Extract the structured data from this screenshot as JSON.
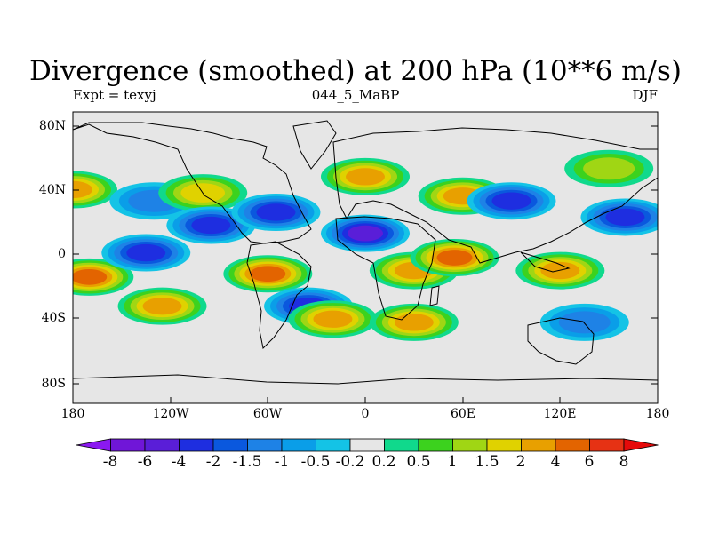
{
  "title": "Divergence (smoothed) at 200 hPa (10**6 m/s)",
  "subtitle_left": "Expt = texyj",
  "subtitle_center": "044_5_MaBP",
  "subtitle_right": "DJF",
  "lat_ticks": [
    "80N",
    "40N",
    "0",
    "40S",
    "80S"
  ],
  "lon_ticks": [
    "180",
    "120W",
    "60W",
    "0",
    "60E",
    "120E",
    "180"
  ],
  "colorbar": {
    "levels": [
      "-8",
      "-6",
      "-4",
      "-2",
      "-1.5",
      "-1",
      "-0.5",
      "-0.2",
      "0.2",
      "0.5",
      "1",
      "1.5",
      "2",
      "4",
      "6",
      "8"
    ],
    "colors": [
      "#8b19f0",
      "#7016d8",
      "#5a1ed8",
      "#1e2ee0",
      "#0a58de",
      "#1e82e6",
      "#0a9ee8",
      "#14c3e6",
      "#e6e6e6",
      "#10d98c",
      "#3cd21e",
      "#a0d614",
      "#e0d200",
      "#e8a000",
      "#e36400",
      "#e63214",
      "#e60a0a"
    ]
  },
  "chart_data": {
    "type": "map",
    "variable": "Divergence (smoothed) at 200 hPa",
    "units": "10**6 m/s",
    "experiment": "texyj",
    "case": "044_5_MaBP",
    "season": "DJF",
    "lon_range": [
      -180,
      180
    ],
    "lat_range": [
      -90,
      90
    ],
    "contour_levels": [
      -8,
      -6,
      -4,
      -2,
      -1.5,
      -1,
      -0.5,
      -0.2,
      0.2,
      0.5,
      1,
      1.5,
      2,
      4,
      6,
      8
    ],
    "features": [
      {
        "lon": -180,
        "lat": 42,
        "value": 2
      },
      {
        "lon": -170,
        "lat": -12,
        "value": 4
      },
      {
        "lon": -135,
        "lat": 3,
        "value": -2
      },
      {
        "lon": -130,
        "lat": 35,
        "value": -1
      },
      {
        "lon": -125,
        "lat": -30,
        "value": 2
      },
      {
        "lon": -100,
        "lat": 40,
        "value": 1.5
      },
      {
        "lon": -95,
        "lat": 20,
        "value": -2
      },
      {
        "lon": -60,
        "lat": -10,
        "value": 4
      },
      {
        "lon": -55,
        "lat": 28,
        "value": -2
      },
      {
        "lon": -35,
        "lat": -30,
        "value": -2
      },
      {
        "lon": -20,
        "lat": -38,
        "value": 2
      },
      {
        "lon": 0,
        "lat": 15,
        "value": -4
      },
      {
        "lon": 0,
        "lat": 50,
        "value": 2
      },
      {
        "lon": 30,
        "lat": -8,
        "value": 2
      },
      {
        "lon": 30,
        "lat": -40,
        "value": 2
      },
      {
        "lon": 55,
        "lat": 0,
        "value": 4
      },
      {
        "lon": 60,
        "lat": 38,
        "value": 2
      },
      {
        "lon": 90,
        "lat": 35,
        "value": -2
      },
      {
        "lon": 120,
        "lat": -8,
        "value": 2
      },
      {
        "lon": 150,
        "lat": 55,
        "value": 1
      },
      {
        "lon": 160,
        "lat": 25,
        "value": -2
      },
      {
        "lon": 135,
        "lat": -40,
        "value": -1
      }
    ]
  }
}
